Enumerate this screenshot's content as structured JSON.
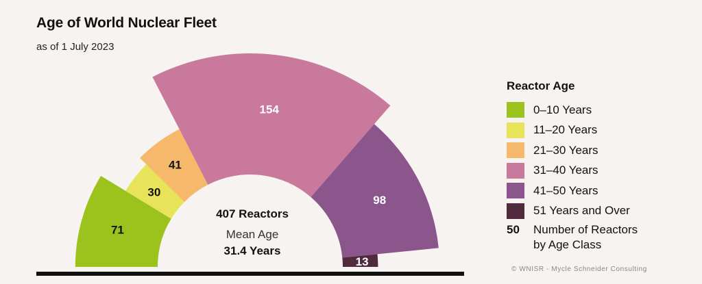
{
  "title": "Age of World Nuclear Fleet",
  "subtitle": "as of 1 July 2023",
  "chart_data": {
    "type": "pie",
    "subtype": "semi-donut",
    "title": "Age of World Nuclear Fleet",
    "subtitle": "as of 1 July 2023",
    "categories": [
      "0–10 Years",
      "11–20 Years",
      "21–30 Years",
      "31–40 Years",
      "41–50 Years",
      "51 Years and Over"
    ],
    "values": [
      71,
      30,
      41,
      154,
      98,
      13
    ],
    "colors": [
      "#9cc21e",
      "#e8e45a",
      "#f6b86b",
      "#c97a9c",
      "#8a568c",
      "#502a3d"
    ],
    "total": 407,
    "center": {
      "total_label": "407 Reactors",
      "mean_label": "Mean Age",
      "mean_value": "31.4 Years"
    },
    "legend_title": "Reactor Age",
    "legend_placement": "right",
    "legend_note": {
      "number": "50",
      "text_line1": "Number of Reactors",
      "text_line2": "by Age Class"
    }
  },
  "credit": "© WNISR - Mycle Schneider Consulting"
}
